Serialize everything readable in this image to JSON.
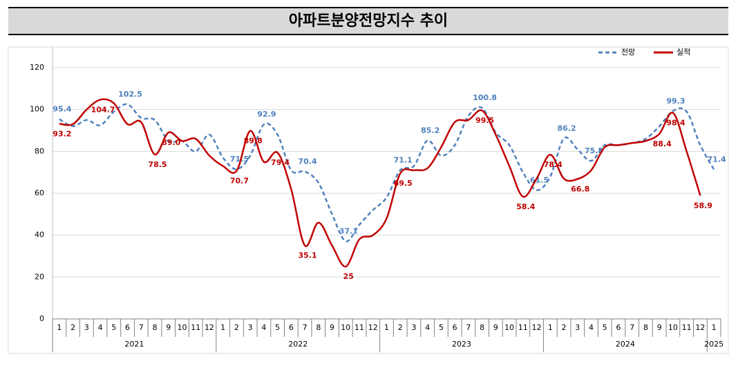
{
  "chart_data": {
    "type": "line",
    "title": "아파트분양전망지수  추이",
    "categories": [
      "1",
      "2",
      "3",
      "4",
      "5",
      "6",
      "7",
      "8",
      "9",
      "10",
      "11",
      "12",
      "1",
      "2",
      "3",
      "4",
      "5",
      "6",
      "7",
      "8",
      "9",
      "10",
      "11",
      "12",
      "1",
      "2",
      "3",
      "4",
      "5",
      "6",
      "7",
      "8",
      "9",
      "10",
      "11",
      "12",
      "1",
      "2",
      "3",
      "4",
      "5",
      "6",
      "7",
      "8",
      "9",
      "10",
      "11",
      "12",
      "1"
    ],
    "years": [
      {
        "label": "2021",
        "months": 12
      },
      {
        "label": "2022",
        "months": 12
      },
      {
        "label": "2023",
        "months": 12
      },
      {
        "label": "2024",
        "months": 12
      },
      {
        "label": "2025",
        "months": 1
      }
    ],
    "series": [
      {
        "name": "전망",
        "color": "#4f81bd",
        "dashed": true,
        "values": [
          95.4,
          92,
          95,
          92.5,
          99,
          102.5,
          96,
          95,
          85,
          85,
          80,
          88,
          77,
          71.5,
          78,
          92.9,
          88,
          71,
          70.4,
          65,
          50,
          37.1,
          45,
          52,
          58,
          71.1,
          73,
          85.2,
          78,
          83,
          97,
          100.8,
          89,
          83,
          70,
          61.5,
          68,
          86.2,
          81,
          75.5,
          83,
          83,
          84,
          86,
          92,
          99.3,
          99,
          83,
          71.4
        ],
        "value_labels": [
          "95.4",
          null,
          null,
          null,
          null,
          "102.5",
          null,
          null,
          null,
          null,
          null,
          null,
          null,
          "71.5",
          null,
          "92.9",
          null,
          null,
          "70.4",
          null,
          null,
          "37.1",
          null,
          null,
          null,
          "71.1",
          null,
          "85.2",
          null,
          null,
          null,
          "100.8",
          null,
          null,
          null,
          "61.5",
          null,
          "86.2",
          null,
          "75.5",
          null,
          null,
          null,
          null,
          null,
          "99.3",
          null,
          null,
          "71.4"
        ]
      },
      {
        "name": "실적",
        "color": "#c00000",
        "dashed": false,
        "values": [
          93.2,
          93,
          100,
          104.7,
          103,
          93,
          94,
          78.5,
          89,
          85,
          86,
          78,
          73,
          70.7,
          89.8,
          75,
          79.4,
          62,
          35.1,
          46,
          35,
          25,
          38,
          40,
          48,
          69.5,
          71,
          72,
          82,
          94,
          95,
          99.5,
          88,
          73,
          58.4,
          67,
          78.4,
          67,
          66.8,
          71,
          82,
          83,
          84,
          85,
          88.4,
          98.4,
          80,
          58.9,
          null
        ],
        "value_labels": [
          "93.2",
          null,
          null,
          "104.7",
          null,
          null,
          null,
          "78.5",
          "89.0",
          null,
          null,
          null,
          null,
          "70.7",
          "89.8",
          null,
          "79.4",
          null,
          "35.1",
          null,
          null,
          "25",
          null,
          null,
          null,
          "69.5",
          null,
          null,
          null,
          null,
          null,
          "99.5",
          null,
          null,
          "58.4",
          null,
          "78.4",
          null,
          "66.8",
          null,
          null,
          null,
          null,
          null,
          "88.4",
          "98.4",
          null,
          "58.9",
          null
        ]
      }
    ],
    "ylim": [
      0,
      120
    ],
    "yticks": [
      0,
      20,
      40,
      60,
      80,
      100,
      120
    ],
    "grid": true,
    "legend": "top-right"
  }
}
